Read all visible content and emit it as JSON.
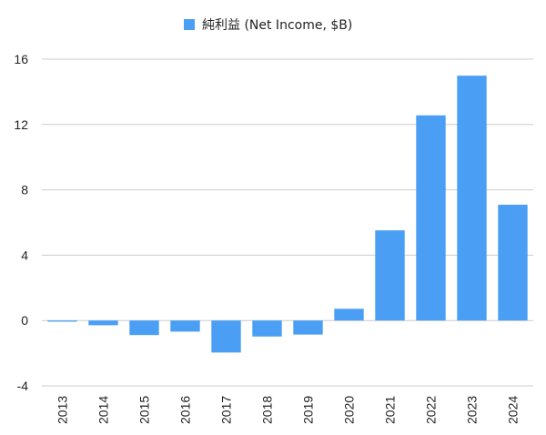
{
  "chart_data": {
    "type": "bar",
    "categories": [
      "2013",
      "2014",
      "2015",
      "2016",
      "2017",
      "2018",
      "2019",
      "2020",
      "2021",
      "2022",
      "2023",
      "2024"
    ],
    "series": [
      {
        "name": "純利益 (Net Income, $B)",
        "values": [
          -0.07,
          -0.29,
          -0.89,
          -0.68,
          -1.96,
          -0.98,
          -0.86,
          0.72,
          5.52,
          12.56,
          14.99,
          7.09
        ]
      }
    ],
    "title": "",
    "xlabel": "",
    "ylabel": "",
    "ylim": [
      -4,
      16
    ],
    "yticks": [
      -4,
      0,
      4,
      8,
      12,
      16
    ],
    "grid": true,
    "legend_position": "top-center",
    "bar_color": "#4a9ff5",
    "grid_color": "#cccccc"
  }
}
